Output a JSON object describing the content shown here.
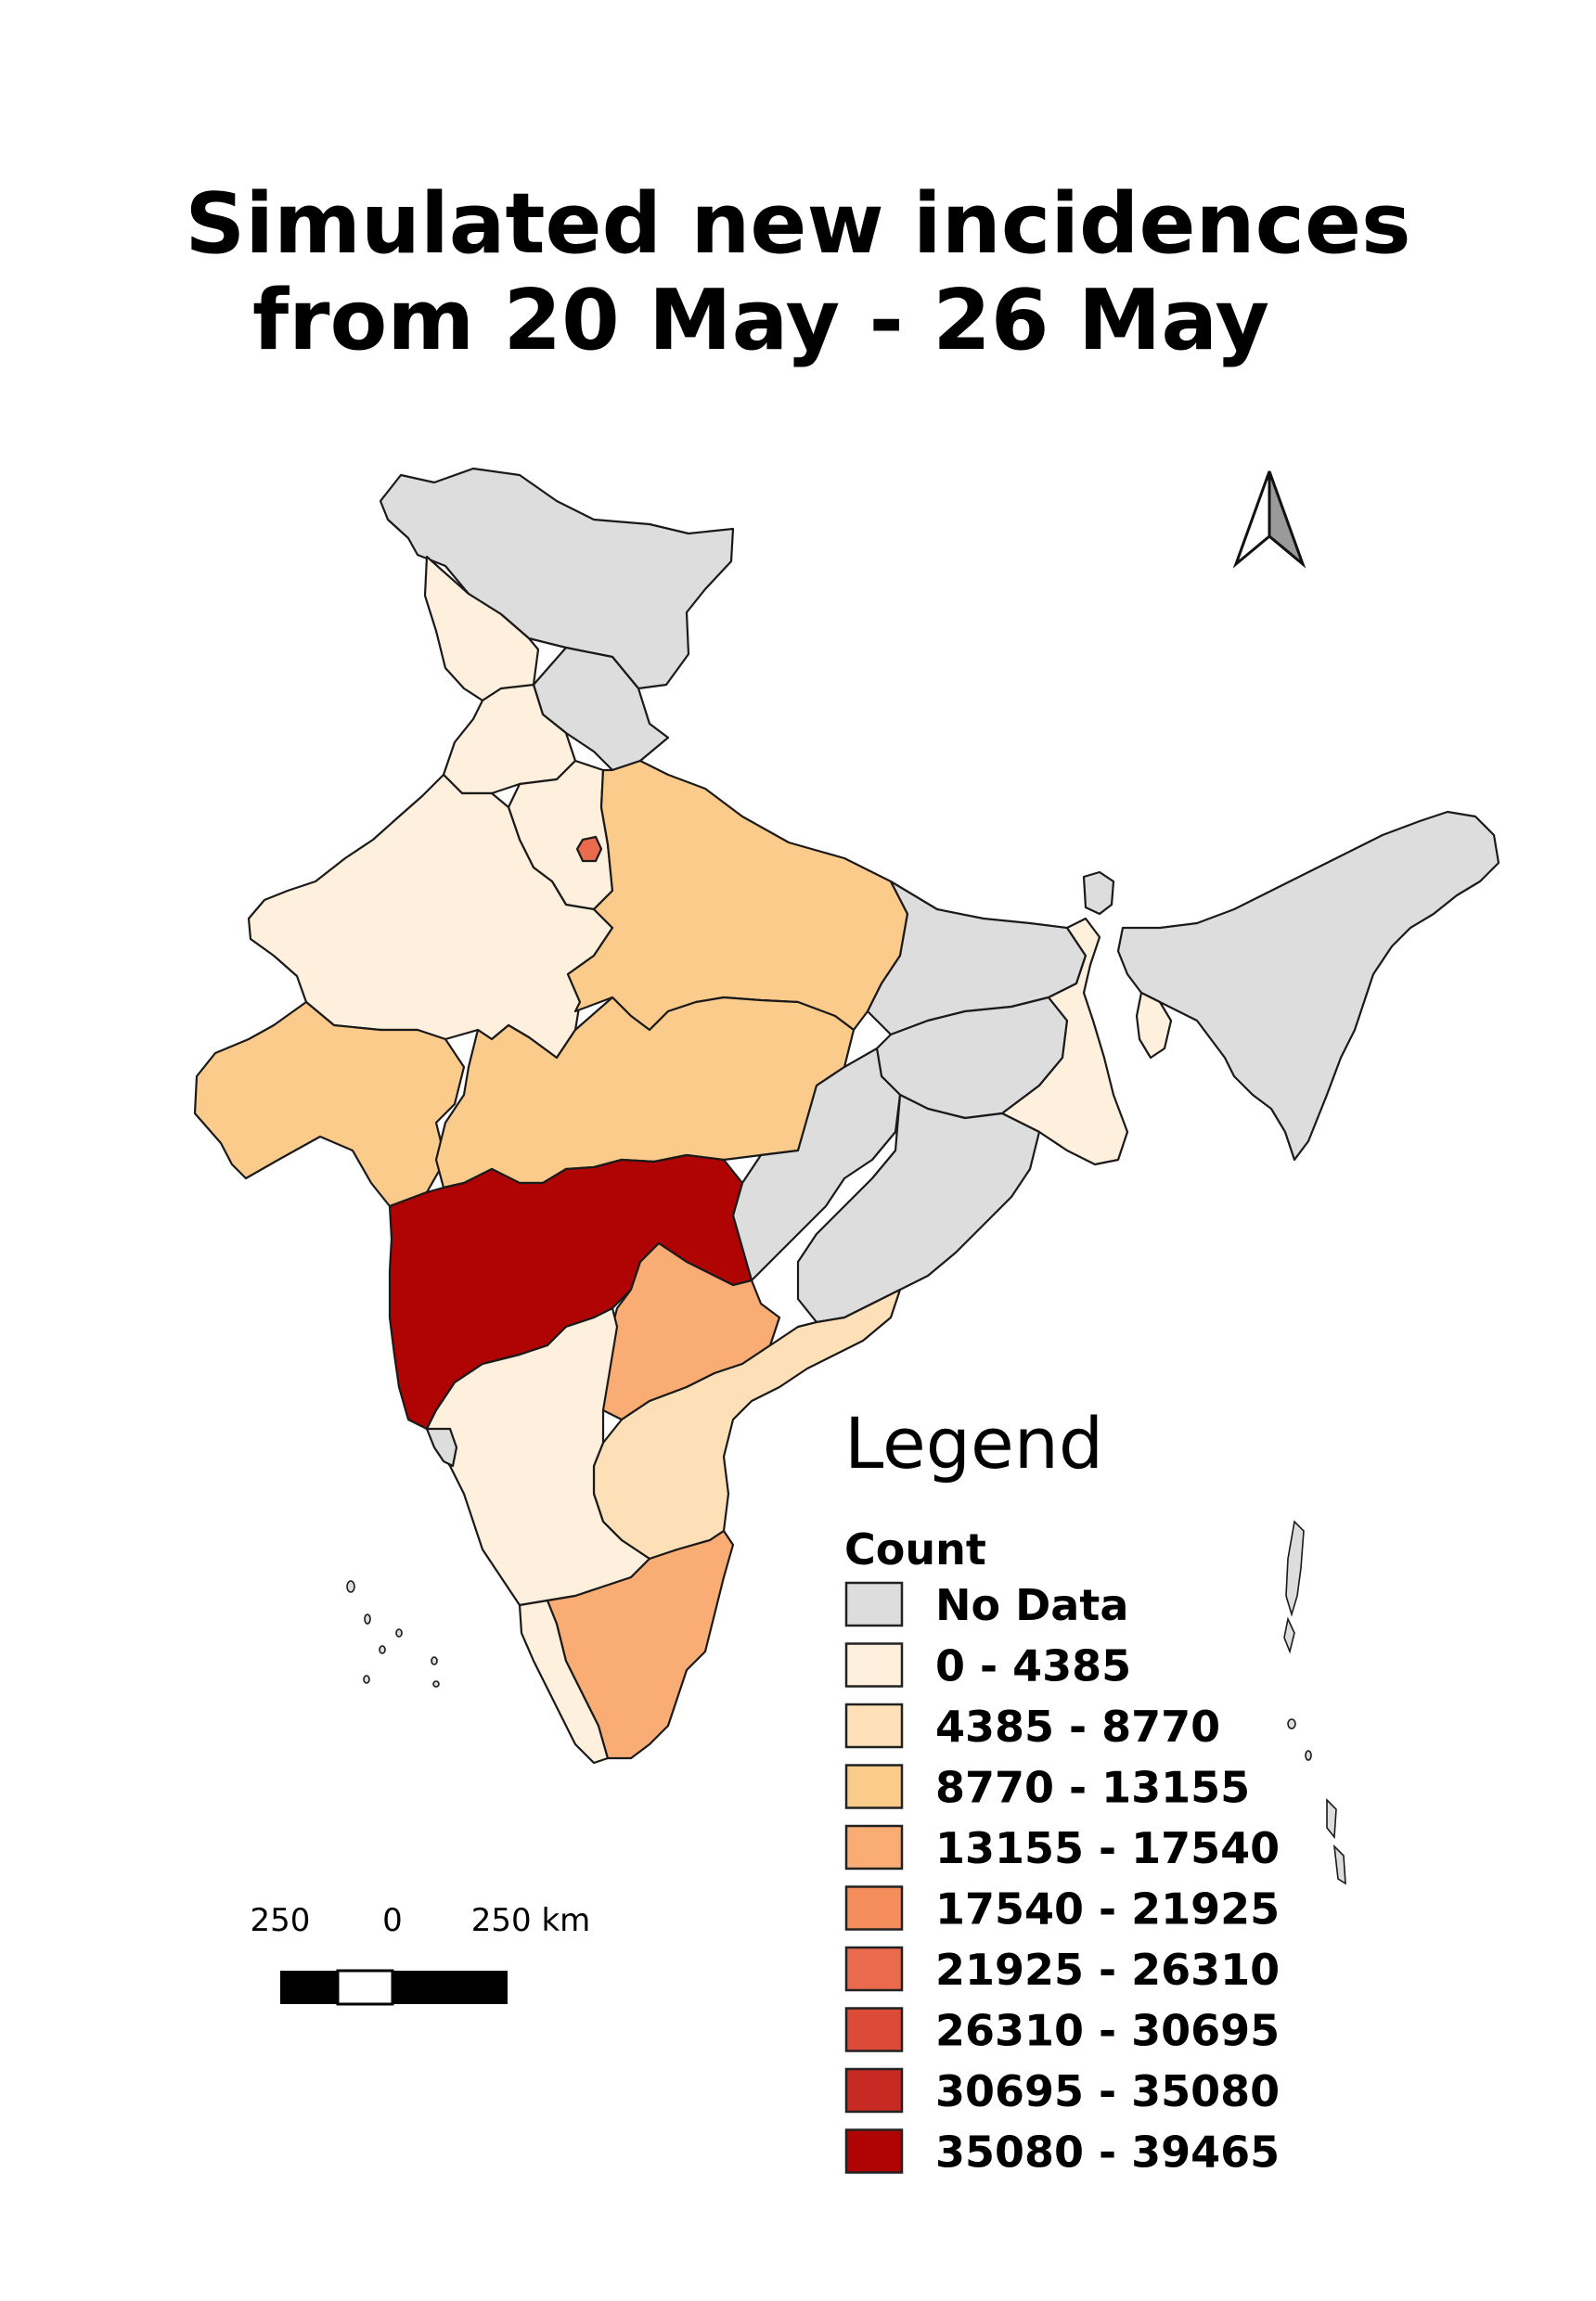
{
  "title": {
    "line1": "Simulated new incidences",
    "line2": "from 20 May - 26 May"
  },
  "legend": {
    "heading": "Legend",
    "field": "Count",
    "classes": [
      {
        "label": "No Data",
        "color": "#dddddd"
      },
      {
        "label": "0 - 4385",
        "color": "#fef0dc"
      },
      {
        "label": "4385 - 8770",
        "color": "#fde0b8"
      },
      {
        "label": "8770 - 13155",
        "color": "#fbcb8c"
      },
      {
        "label": "13155 - 17540",
        "color": "#f9ad75"
      },
      {
        "label": "17540 - 21925",
        "color": "#f68d5c"
      },
      {
        "label": "21925 - 26310",
        "color": "#ea6a4d"
      },
      {
        "label": "26310 - 30695",
        "color": "#dc4a38"
      },
      {
        "label": "30695 - 35080",
        "color": "#c62a22"
      },
      {
        "label": "35080 - 39465",
        "color": "#b00404"
      }
    ]
  },
  "scale_bar": {
    "left_label": "250",
    "middle_label": "0",
    "right_label": "250 km"
  },
  "north_arrow": {
    "icon": "north-arrow-icon"
  },
  "regions": [
    {
      "name": "jammu-kashmir-ladakh",
      "class_index": 0
    },
    {
      "name": "himachal-pradesh",
      "class_index": 1
    },
    {
      "name": "uttarakhand",
      "class_index": 0
    },
    {
      "name": "punjab",
      "class_index": 1
    },
    {
      "name": "haryana",
      "class_index": 1
    },
    {
      "name": "delhi",
      "class_index": 6
    },
    {
      "name": "rajasthan",
      "class_index": 1
    },
    {
      "name": "uttar-pradesh",
      "class_index": 3
    },
    {
      "name": "bihar",
      "class_index": 0
    },
    {
      "name": "gujarat",
      "class_index": 3
    },
    {
      "name": "madhya-pradesh",
      "class_index": 3
    },
    {
      "name": "jharkhand",
      "class_index": 0
    },
    {
      "name": "west-bengal",
      "class_index": 1
    },
    {
      "name": "chhattisgarh",
      "class_index": 0
    },
    {
      "name": "odisha",
      "class_index": 0
    },
    {
      "name": "maharashtra",
      "class_index": 9
    },
    {
      "name": "telangana",
      "class_index": 4
    },
    {
      "name": "andhra-pradesh",
      "class_index": 2
    },
    {
      "name": "karnataka",
      "class_index": 1
    },
    {
      "name": "goa",
      "class_index": 0
    },
    {
      "name": "kerala",
      "class_index": 1
    },
    {
      "name": "tamil-nadu",
      "class_index": 4
    },
    {
      "name": "sikkim",
      "class_index": 0
    },
    {
      "name": "northeast-states",
      "class_index": 0
    },
    {
      "name": "tripura",
      "class_index": 1
    }
  ]
}
